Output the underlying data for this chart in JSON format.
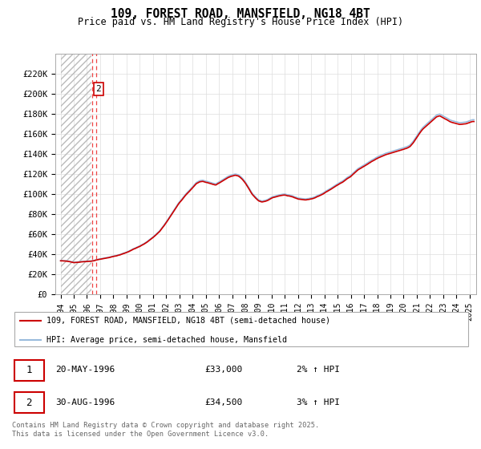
{
  "title": "109, FOREST ROAD, MANSFIELD, NG18 4BT",
  "subtitle": "Price paid vs. HM Land Registry's House Price Index (HPI)",
  "legend_label_red": "109, FOREST ROAD, MANSFIELD, NG18 4BT (semi-detached house)",
  "legend_label_blue": "HPI: Average price, semi-detached house, Mansfield",
  "transaction_1_date": "20-MAY-1996",
  "transaction_1_price": "£33,000",
  "transaction_1_hpi": "2% ↑ HPI",
  "transaction_2_date": "30-AUG-1996",
  "transaction_2_price": "£34,500",
  "transaction_2_hpi": "3% ↑ HPI",
  "footer": "Contains HM Land Registry data © Crown copyright and database right 2025.\nThis data is licensed under the Open Government Licence v3.0.",
  "ylim": [
    0,
    240000
  ],
  "yticks": [
    0,
    20000,
    40000,
    60000,
    80000,
    100000,
    120000,
    140000,
    160000,
    180000,
    200000,
    220000
  ],
  "ytick_labels": [
    "£0",
    "£20K",
    "£40K",
    "£60K",
    "£80K",
    "£100K",
    "£120K",
    "£140K",
    "£160K",
    "£180K",
    "£200K",
    "£220K"
  ],
  "color_red": "#cc0000",
  "color_blue": "#99bbdd",
  "color_dashed_red": "#ee4444",
  "grid_color": "#dddddd",
  "t1_year": 1996.38,
  "t2_year": 1996.67,
  "t1_price": 33000,
  "t2_price": 34500,
  "xstart": 1994.0,
  "xend": 2025.33
}
